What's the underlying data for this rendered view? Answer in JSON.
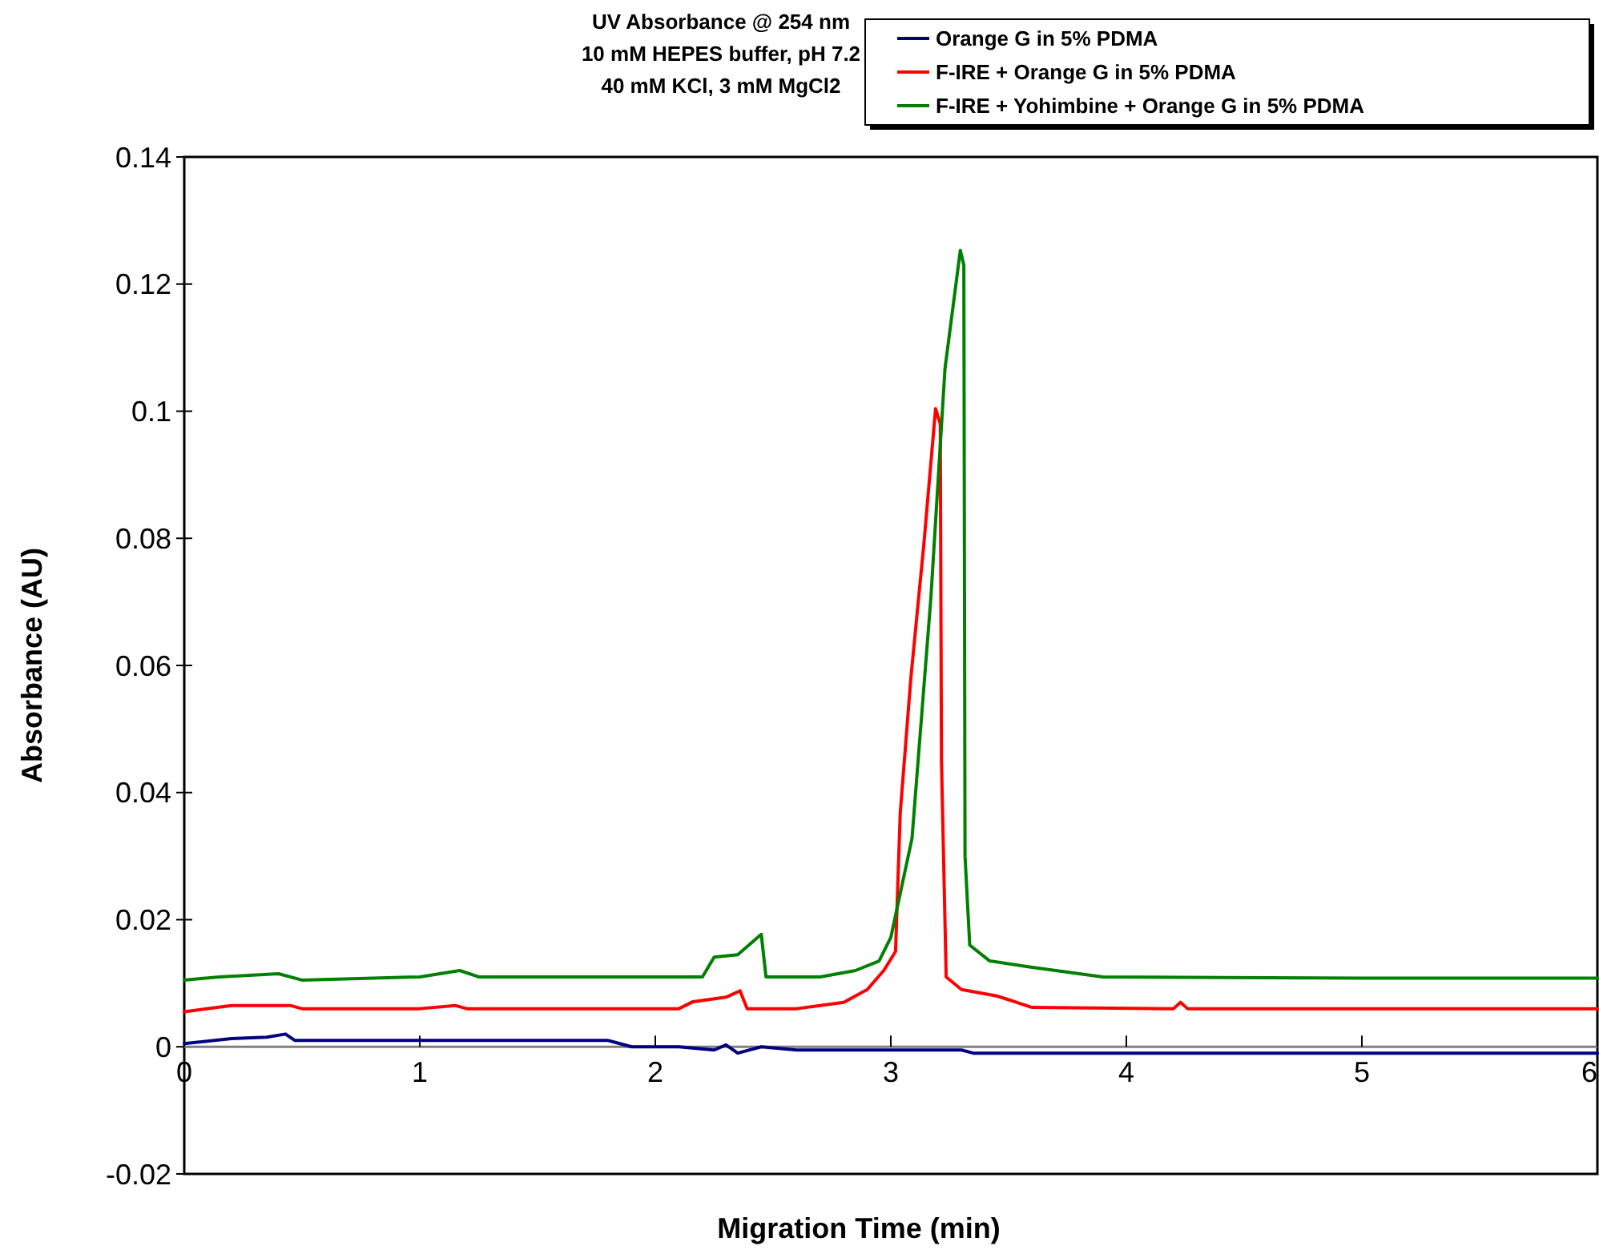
{
  "chart_data": {
    "type": "line",
    "title": "UV Absorbance @ 254 nm\n10 mM HEPES buffer, pH 7.2\n40 mM KCl, 3 mM MgCl2",
    "xlabel": "Migration Time (min)",
    "ylabel": "Absorbance (AU)",
    "xlim": [
      0,
      6
    ],
    "xticks": [
      0,
      1,
      2,
      3,
      4,
      5,
      6
    ],
    "ylim": [
      -0.02,
      0.14
    ],
    "yticks": [
      -0.02,
      0,
      0.02,
      0.04,
      0.06,
      0.08,
      0.1,
      0.12,
      0.14
    ],
    "grid": false,
    "legend": "top right",
    "marker": "none",
    "line_style": "solid",
    "series": [
      {
        "name": "Orange G in 5% PDMA",
        "color": "#000080",
        "x": [
          0,
          0.2,
          0.35,
          0.43,
          0.47,
          1.0,
          1.5,
          1.8,
          1.9,
          2.1,
          2.25,
          2.3,
          2.35,
          2.45,
          2.6,
          3.0,
          3.3,
          3.35,
          4.0,
          5.0,
          6.0
        ],
        "values": [
          0.0005,
          0.0013,
          0.0015,
          0.002,
          0.001,
          0.001,
          0.001,
          0.001,
          0,
          0,
          -0.0005,
          0.0003,
          -0.001,
          0,
          -0.0005,
          -0.0005,
          -0.0005,
          -0.001,
          -0.001,
          -0.001,
          -0.001
        ]
      },
      {
        "name": "F-IRE + Orange G in 5% PDMA",
        "color": "#ff0000",
        "x": [
          0,
          0.2,
          0.45,
          0.5,
          1.0,
          1.15,
          1.2,
          2.1,
          2.16,
          2.3,
          2.36,
          2.39,
          2.6,
          2.8,
          2.9,
          2.97,
          3.02,
          3.04,
          3.085,
          3.14,
          3.19,
          3.21,
          3.215,
          3.235,
          3.3,
          3.45,
          3.6,
          4.2,
          4.23,
          4.26,
          5.0,
          6.0
        ],
        "values": [
          0.0055,
          0.0065,
          0.0065,
          0.006,
          0.006,
          0.0065,
          0.006,
          0.006,
          0.0071,
          0.0078,
          0.0088,
          0.006,
          0.006,
          0.007,
          0.009,
          0.012,
          0.015,
          0.0368,
          0.058,
          0.079,
          0.1004,
          0.098,
          0.045,
          0.011,
          0.009,
          0.008,
          0.0062,
          0.006,
          0.007,
          0.006,
          0.006,
          0.006
        ]
      },
      {
        "name": "F-IRE + Yohimbine + Orange G in 5% PDMA",
        "color": "#008000",
        "x": [
          0,
          0.15,
          0.4,
          0.5,
          1.0,
          1.17,
          1.25,
          2.2,
          2.25,
          2.35,
          2.45,
          2.47,
          2.7,
          2.85,
          2.95,
          3.0,
          3.09,
          3.17,
          3.23,
          3.295,
          3.31,
          3.315,
          3.335,
          3.42,
          3.6,
          3.9,
          5.0,
          6.0
        ],
        "values": [
          0.0105,
          0.011,
          0.0115,
          0.0105,
          0.011,
          0.012,
          0.011,
          0.011,
          0.0141,
          0.0145,
          0.0177,
          0.011,
          0.011,
          0.012,
          0.0135,
          0.0172,
          0.0328,
          0.0706,
          0.1067,
          0.1253,
          0.123,
          0.03,
          0.016,
          0.0135,
          0.0125,
          0.011,
          0.0108,
          0.0108
        ]
      }
    ]
  }
}
